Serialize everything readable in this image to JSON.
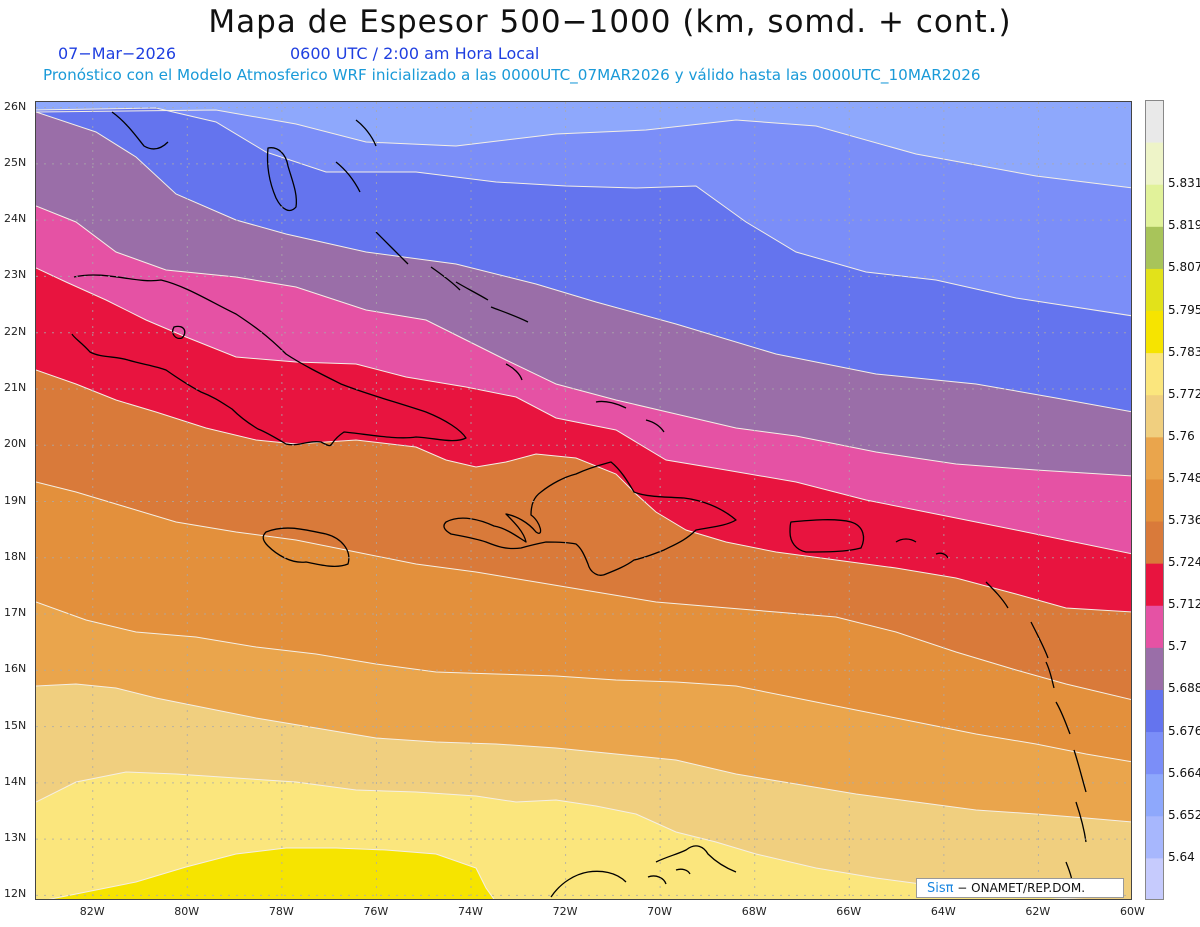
{
  "header": {
    "title": "Mapa de Espesor 500−1000 (km, somd. + cont.)",
    "date": "07−Mar−2026",
    "time": "0600 UTC / 2:00 am Hora Local",
    "model_line": "Pronóstico con el Modelo Atmosferico WRF inicializado a las 0000UTC_07MAR2026 y válido hasta las  0000UTC_10MAR2026"
  },
  "map": {
    "lon_range": [
      -83.2,
      -60
    ],
    "lat_range": [
      11.9,
      26.1
    ],
    "lat_ticks": [
      "12N",
      "13N",
      "14N",
      "15N",
      "16N",
      "17N",
      "18N",
      "19N",
      "20N",
      "21N",
      "22N",
      "23N",
      "24N",
      "25N",
      "26N"
    ],
    "lon_ticks": [
      "82W",
      "80W",
      "78W",
      "76W",
      "74W",
      "72W",
      "70W",
      "68W",
      "66W",
      "64W",
      "62W",
      "60W"
    ],
    "grid": true,
    "filled_contour_bands": [
      {
        "level": 5.652,
        "color": "#8ea8fc"
      },
      {
        "level": 5.664,
        "color": "#7b8ef8"
      },
      {
        "level": 5.676,
        "color": "#6474ee"
      },
      {
        "level": 5.688,
        "color": "#9a6ea8"
      },
      {
        "level": 5.7,
        "color": "#e552a4"
      },
      {
        "level": 5.712,
        "color": "#e8143f"
      },
      {
        "level": 5.724,
        "color": "#d97a3a"
      },
      {
        "level": 5.736,
        "color": "#e3903c"
      },
      {
        "level": 5.748,
        "color": "#eaa54c"
      },
      {
        "level": 5.76,
        "color": "#f0cf7f"
      },
      {
        "level": 5.772,
        "color": "#fbe67d"
      },
      {
        "level": 5.783,
        "color": "#f6e400"
      }
    ],
    "contour_line_color": "#f4efe6"
  },
  "colorbar": {
    "labels": [
      "5.64",
      "5.652",
      "5.664",
      "5.676",
      "5.688",
      "5.7",
      "5.712",
      "5.724",
      "5.736",
      "5.748",
      "5.76",
      "5.772",
      "5.783",
      "5.795",
      "5.807",
      "5.819",
      "5.831"
    ],
    "colors": [
      "#c6cbfd",
      "#a7b7fd",
      "#8ea8fc",
      "#7b8ef8",
      "#6474ee",
      "#9a6ea8",
      "#e552a4",
      "#e8143f",
      "#d97a3a",
      "#e3903c",
      "#eaa54c",
      "#f0cf7f",
      "#fbe67d",
      "#f6e400",
      "#e2e21a",
      "#a8c45a",
      "#e1f29a",
      "#eef4c8",
      "#e9e9e9"
    ]
  },
  "credit": {
    "brand": "Sisπ",
    "org": " − ONAMET/REP.DOM."
  }
}
